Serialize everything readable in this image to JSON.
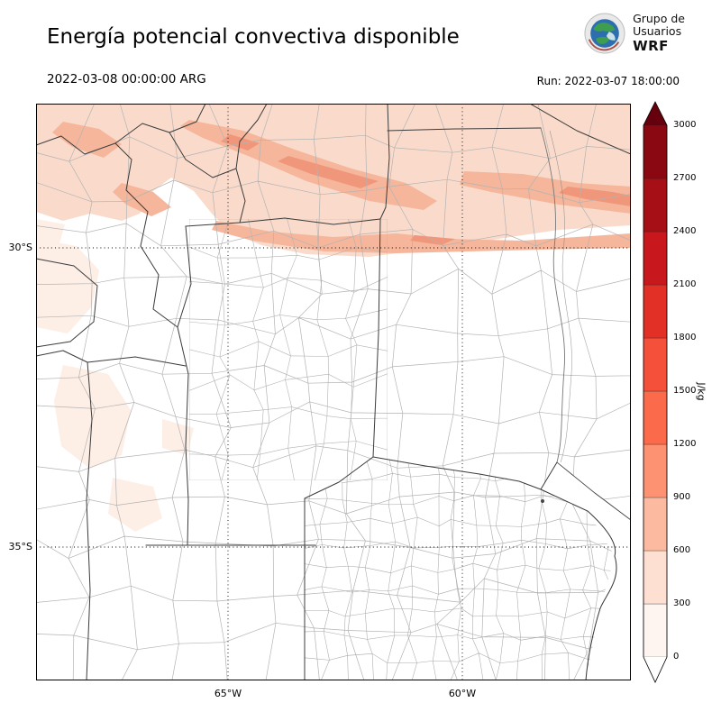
{
  "header": {
    "title": "Energía potencial convectiva disponible",
    "logo": {
      "line1": "Grupo de",
      "line2": "Usuarios",
      "line3": "WRF"
    }
  },
  "times": {
    "valid": "2022-03-08 00:00:00 ARG",
    "run": "Run: 2022-03-07 18:00:00"
  },
  "axes": {
    "lat_labels": [
      "30°S",
      "35°S"
    ],
    "lon_labels": [
      "65°W",
      "60°W"
    ]
  },
  "colorbar": {
    "unit": "J/kg",
    "ticks": [
      "0",
      "300",
      "600",
      "900",
      "1200",
      "1500",
      "1800",
      "2100",
      "2400",
      "2700",
      "3000"
    ],
    "segment_colors": [
      "#fff5f0",
      "#fee0d2",
      "#fcbba1",
      "#fc9272",
      "#fb6a4a",
      "#f4503a",
      "#e23027",
      "#c9181d",
      "#a50f15",
      "#8a0812"
    ],
    "over_color": "#67000d",
    "under_color": "#ffffff"
  },
  "map": {
    "shading_colors": {
      "faint": "#fdeee6",
      "low": "#fadbcb",
      "mid": "#f5b69b",
      "high": "#f0977b"
    },
    "line_colors": {
      "province": "#3b3b3b",
      "department": "#b3b3b3",
      "coast": "#333333",
      "river": "#777777"
    }
  },
  "chart_data": {
    "type": "heatmap",
    "title": "Energía potencial convectiva disponible",
    "variable": "CAPE (convective available potential energy)",
    "unit": "J/kg",
    "valid_time": "2022-03-08 00:00:00 ARG",
    "run_time": "2022-03-07 18:00:00",
    "colorbar_ticks": [
      0,
      300,
      600,
      900,
      1200,
      1500,
      1800,
      2100,
      2400,
      2700,
      3000
    ],
    "colorbar_range": [
      0,
      3000
    ],
    "lat_gridlines": [
      "30°S",
      "35°S"
    ],
    "lon_gridlines": [
      "65°W",
      "60°W"
    ],
    "regions": [
      {
        "area": "northern band across full width, north of ~30°S",
        "value_jkg": "300-600"
      },
      {
        "area": "NW-SE diagonal streaks ~27.5-29°S between 66°W and 61°W and NE corner",
        "value_jkg": "600-900"
      },
      {
        "area": "cores inside northern streaks and far NE",
        "value_jkg": "900-1200"
      },
      {
        "area": "western edge patches between 30°S and 34°S",
        "value_jkg": "0-300"
      },
      {
        "area": "center and south of domain",
        "value_jkg": "~0"
      }
    ]
  }
}
